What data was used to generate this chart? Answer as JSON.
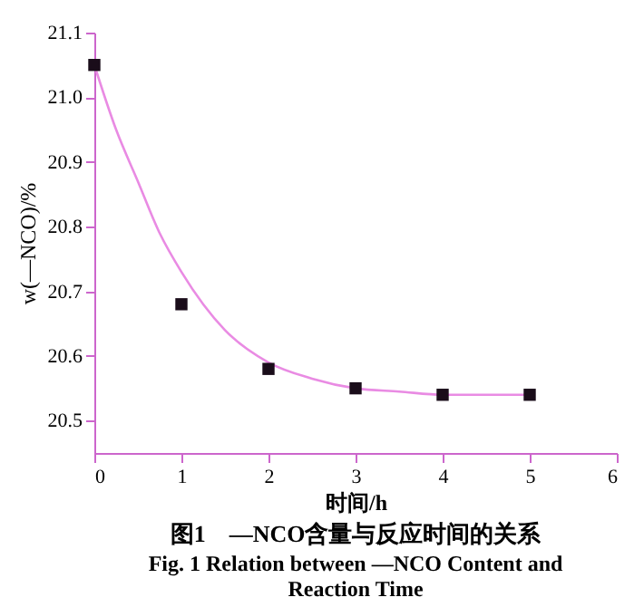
{
  "chart_data": {
    "type": "scatter",
    "title": "图1　—NCO含量与反应时间的关系",
    "subtitle": "Fig. 1   Relation between —NCO Content and Reaction Time",
    "xlabel": "时间/h",
    "ylabel": "w(—NCO)/%",
    "xlim": [
      0,
      6
    ],
    "xticks": [
      0,
      1,
      2,
      3,
      4,
      5,
      6
    ],
    "ylim": [
      20.45,
      21.1
    ],
    "yticks": [
      20.5,
      20.6,
      20.7,
      20.8,
      20.9,
      {
        "value": 21,
        "label": "21.0"
      },
      21.1
    ],
    "grid": false,
    "series": [
      {
        "color": "#1a0d1a",
        "marker": "square",
        "x": [
          0,
          1,
          2,
          3,
          4,
          5
        ],
        "values": [
          21.05,
          20.68,
          20.58,
          20.55,
          20.54,
          20.54
        ]
      },
      {
        "type": "line",
        "marker": "none",
        "color": "#e98be3",
        "x": [
          0,
          0.25,
          0.5,
          0.75,
          1,
          1.5,
          2,
          2.5,
          3,
          3.5,
          4,
          4.5,
          5
        ],
        "values": [
          21.05,
          20.95,
          20.87,
          20.79,
          20.73,
          20.64,
          20.59,
          20.565,
          20.55,
          20.545,
          20.54,
          20.54,
          20.54
        ]
      }
    ]
  }
}
